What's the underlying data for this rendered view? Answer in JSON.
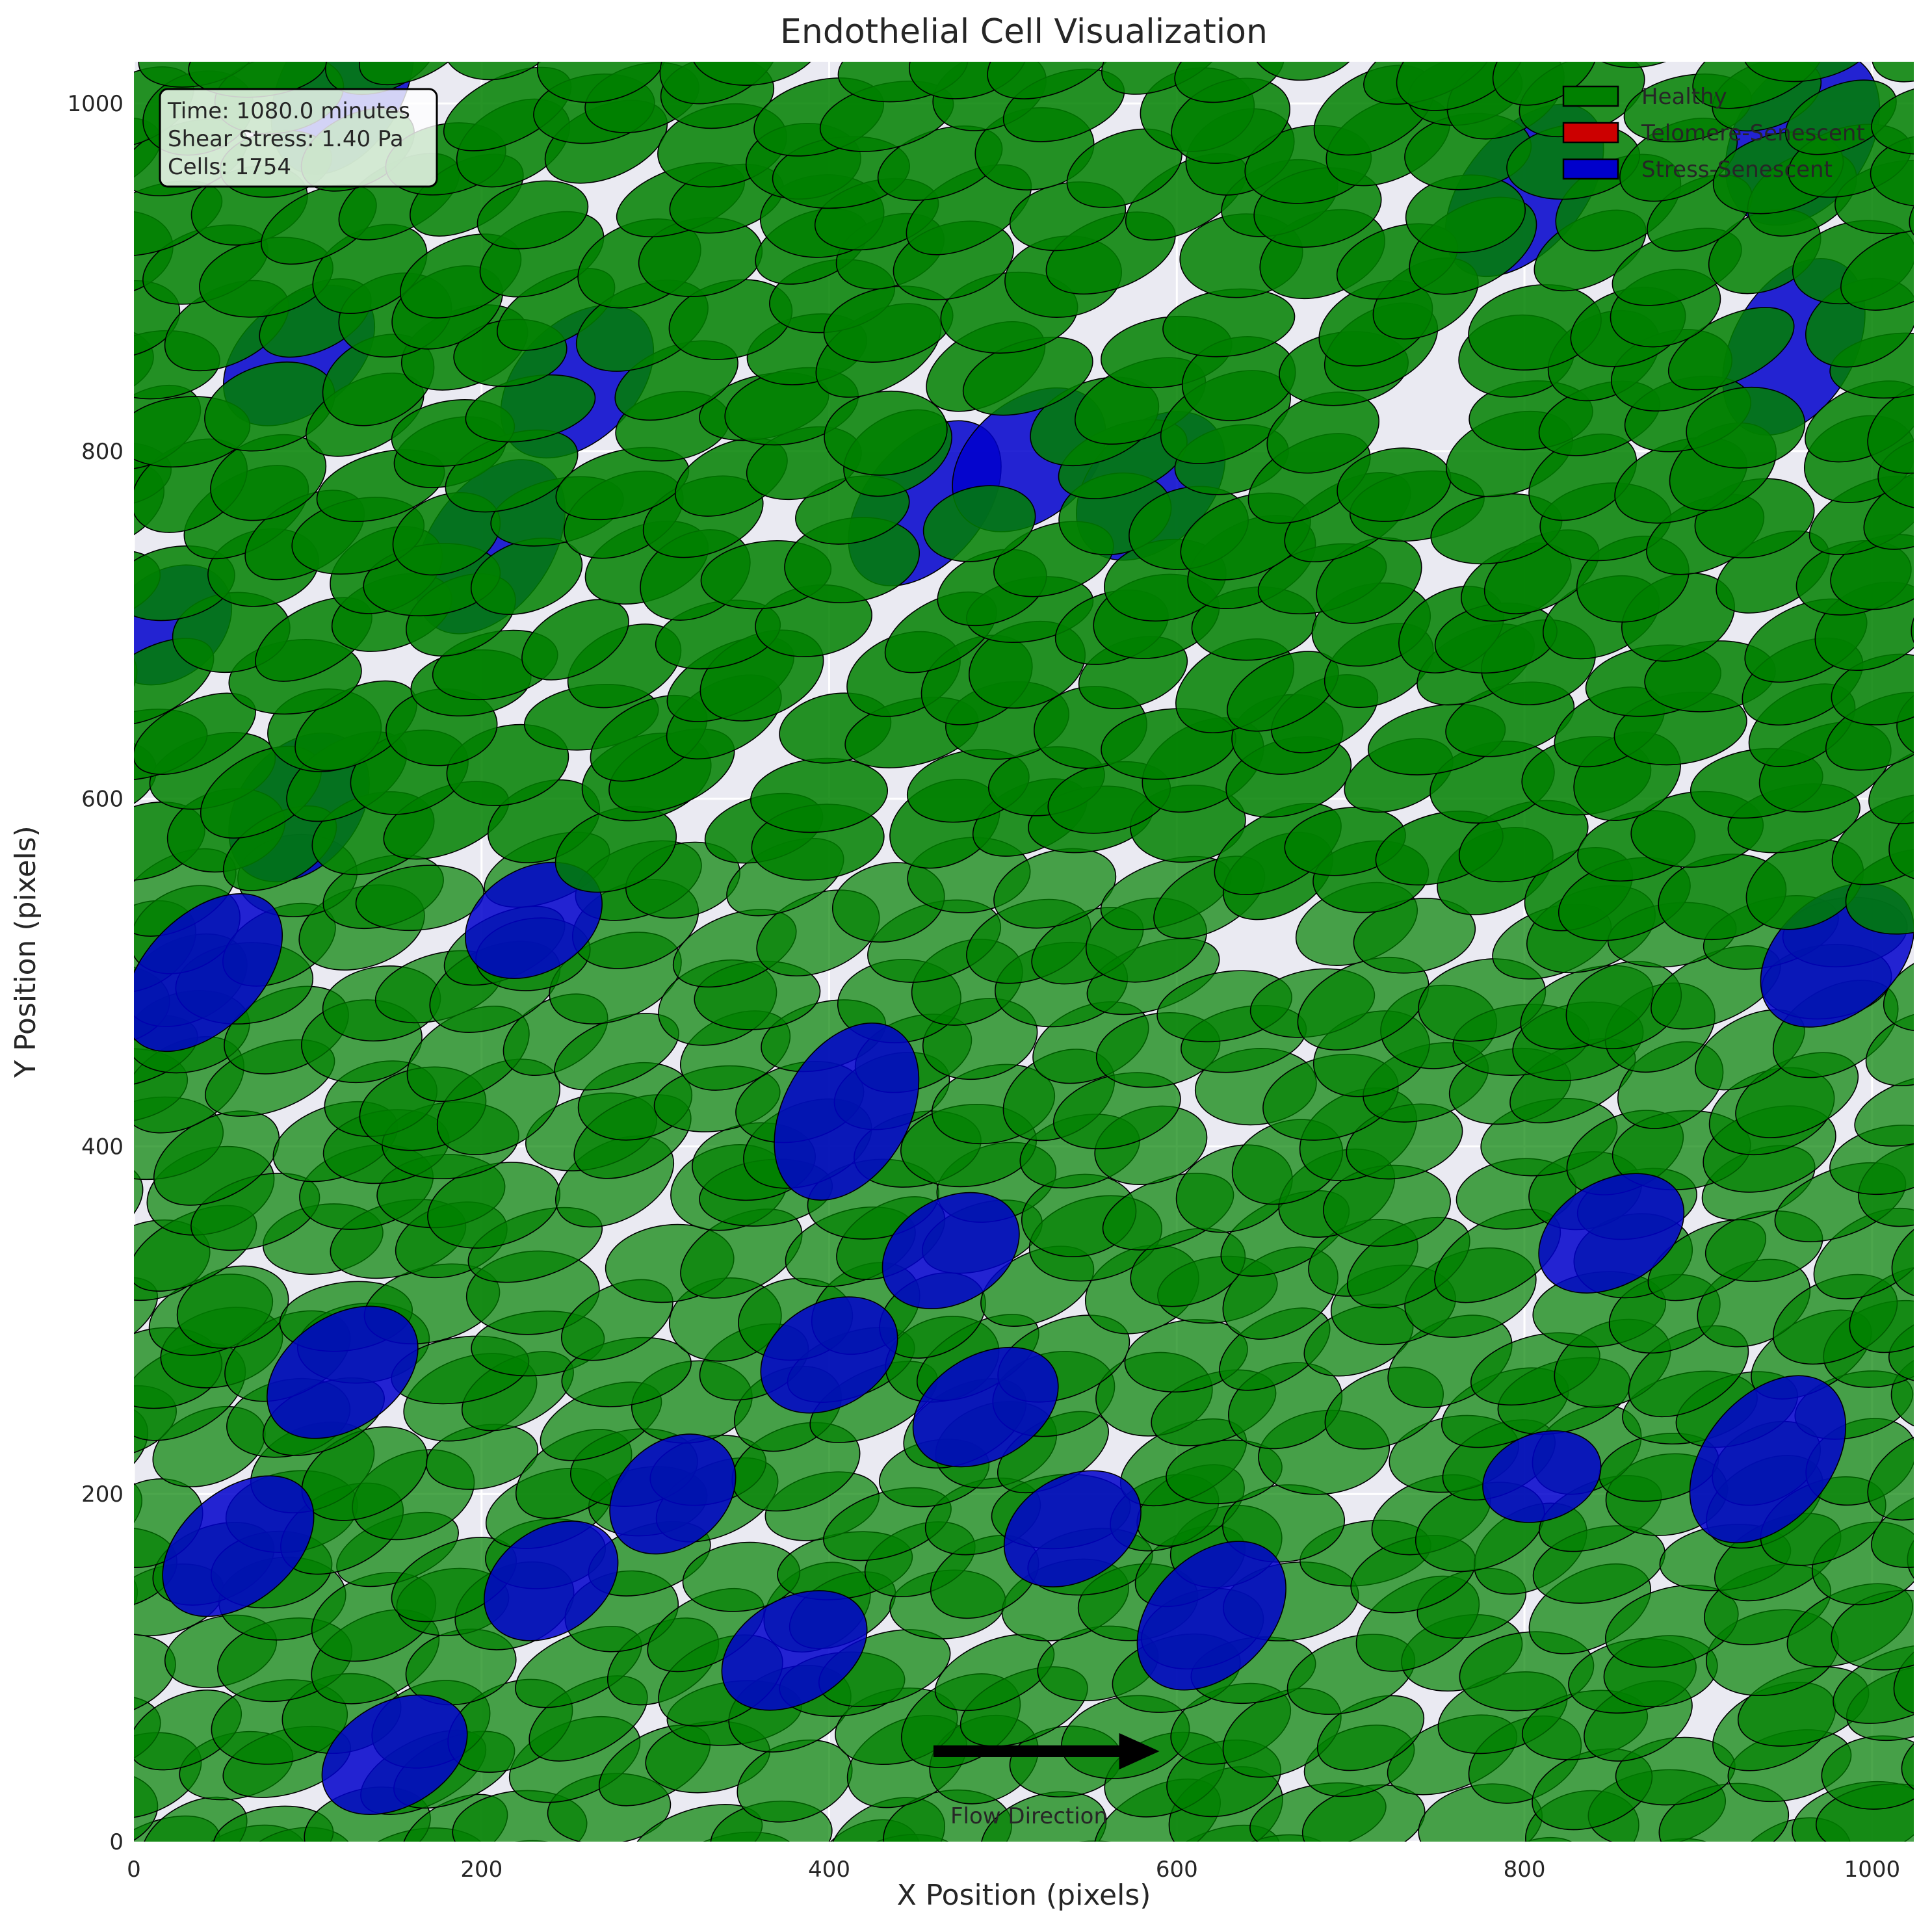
{
  "chart_data": {
    "type": "scatter",
    "title": "Endothelial Cell Visualization",
    "xlabel": "X Position (pixels)",
    "ylabel": "Y Position (pixels)",
    "xlim": [
      0,
      1024
    ],
    "ylim": [
      0,
      1024
    ],
    "x_ticks": [
      "0",
      "200",
      "400",
      "600",
      "800",
      "1000"
    ],
    "y_ticks": [
      "0",
      "200",
      "400",
      "600",
      "800",
      "1000"
    ],
    "x_tick_values": [
      0,
      200,
      400,
      600,
      800,
      1000
    ],
    "y_tick_values": [
      0,
      200,
      400,
      600,
      800,
      1000
    ],
    "grid": true,
    "legend_position": "top-right",
    "legend": [
      {
        "label": "Healthy",
        "color": "#008000"
      },
      {
        "label": "Telomere-Senescent",
        "color": "#cc0000"
      },
      {
        "label": "Stress-Senescent",
        "color": "#0000cc"
      }
    ],
    "info_box": {
      "time": "Time: 1080.0 minutes",
      "shear": "Shear Stress: 1.40 Pa",
      "cells": "Cells: 1754"
    },
    "flow": {
      "label": "Flow Direction",
      "x_start": 460,
      "x_end": 590,
      "y": 52,
      "label_x": 515,
      "label_y": 15
    },
    "colors": {
      "healthy": "#008000",
      "telomere": "#cc0000",
      "stress": "#0000cc",
      "background": "#eaeaf2"
    },
    "stress_senescent_cells": [
      [
        120,
        1010,
        55,
        35,
        60
      ],
      [
        800,
        950,
        58,
        34,
        50
      ],
      [
        960,
        980,
        55,
        38,
        55
      ],
      [
        955,
        860,
        55,
        35,
        60
      ],
      [
        95,
        855,
        50,
        32,
        40
      ],
      [
        255,
        840,
        52,
        34,
        45
      ],
      [
        455,
        770,
        55,
        34,
        50
      ],
      [
        515,
        795,
        50,
        34,
        40
      ],
      [
        585,
        780,
        50,
        34,
        45
      ],
      [
        205,
        745,
        56,
        35,
        55
      ],
      [
        20,
        700,
        40,
        30,
        40
      ],
      [
        95,
        595,
        48,
        34,
        50
      ],
      [
        230,
        530,
        42,
        30,
        30
      ],
      [
        40,
        500,
        55,
        33,
        45
      ],
      [
        980,
        510,
        50,
        34,
        40
      ],
      [
        410,
        420,
        55,
        36,
        60
      ],
      [
        850,
        350,
        45,
        30,
        30
      ],
      [
        120,
        270,
        48,
        32,
        35
      ],
      [
        310,
        200,
        40,
        30,
        40
      ],
      [
        240,
        150,
        42,
        30,
        35
      ],
      [
        60,
        170,
        50,
        32,
        40
      ],
      [
        940,
        220,
        55,
        36,
        50
      ],
      [
        810,
        210,
        35,
        25,
        20
      ],
      [
        620,
        130,
        50,
        34,
        45
      ],
      [
        470,
        340,
        42,
        30,
        30
      ],
      [
        400,
        280,
        42,
        30,
        30
      ],
      [
        490,
        250,
        45,
        30,
        30
      ],
      [
        540,
        180,
        42,
        30,
        30
      ],
      [
        380,
        110,
        45,
        30,
        30
      ],
      [
        150,
        50,
        45,
        30,
        30
      ]
    ],
    "healthy_cells": {
      "count": 1754,
      "grid_spacing_x": 50,
      "grid_spacing_y": 30,
      "semi_major": [
        32,
        40
      ],
      "semi_minor": [
        18,
        24
      ],
      "angle_deg": [
        5,
        30
      ],
      "empty_gaps": [
        [
          760,
          815,
          30,
          18
        ],
        [
          560,
          880,
          30,
          18
        ],
        [
          640,
          520,
          25,
          16
        ],
        [
          440,
          620,
          25,
          16
        ],
        [
          300,
          700,
          22,
          14
        ],
        [
          120,
          660,
          22,
          14
        ]
      ]
    }
  }
}
